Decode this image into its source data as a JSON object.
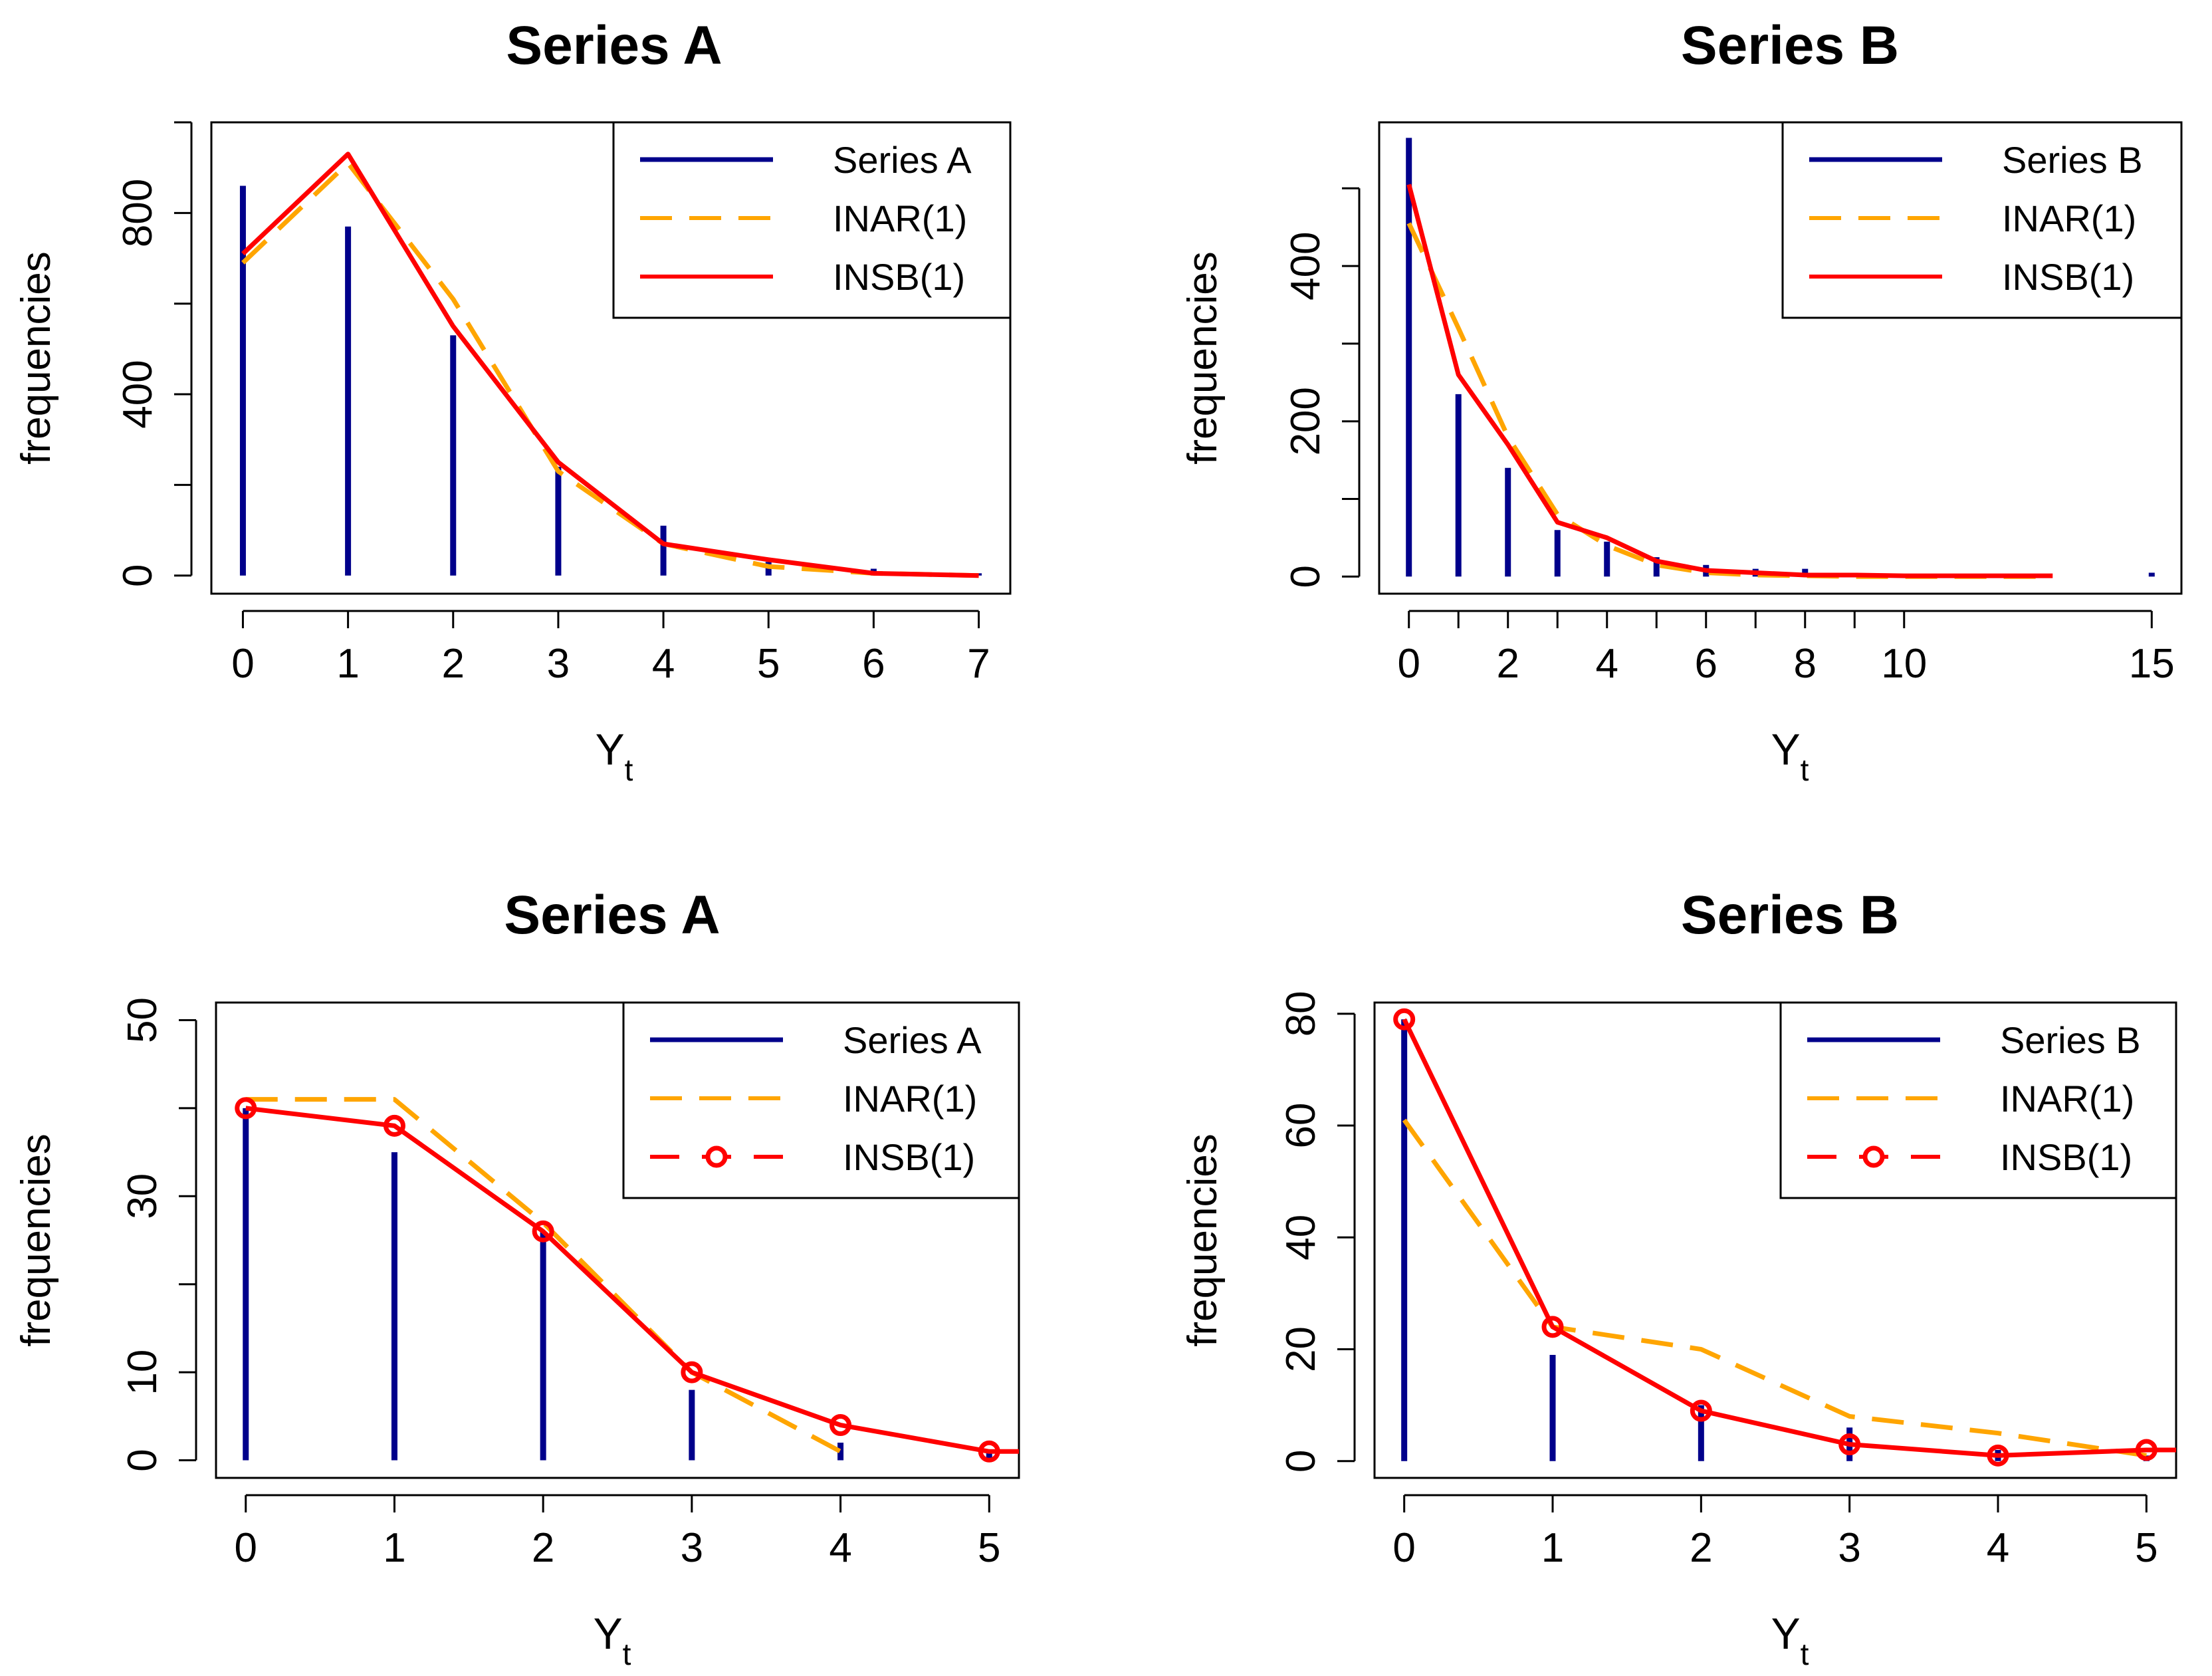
{
  "colors": {
    "observed": "#00008B",
    "inar": "#FFA500",
    "insb": "#FF0000",
    "axis": "#000000",
    "background": "#FFFFFF"
  },
  "chart_data": [
    {
      "type": "bar",
      "title": "Series A",
      "xlabel": "Y",
      "xlabel_subscript": "t",
      "ylabel": "frequencies",
      "xlim": [
        -0.3,
        7.3
      ],
      "ylim": [
        -40,
        1000
      ],
      "x_ticks": [
        0,
        1,
        2,
        3,
        4,
        5,
        6,
        7
      ],
      "x_tick_labels": [
        "0",
        "1",
        "2",
        "3",
        "4",
        "5",
        "6",
        "7"
      ],
      "y_ticks": [
        0,
        200,
        400,
        600,
        800,
        1000
      ],
      "y_tick_labels": [
        "0",
        "",
        "400",
        "",
        "800",
        ""
      ],
      "legend": {
        "position": "top-right",
        "markers": false,
        "entries": [
          "Series A",
          "INAR(1)",
          "INSB(1)"
        ]
      },
      "series": [
        {
          "name": "Series A",
          "style": "bars",
          "x": [
            0,
            1,
            2,
            3,
            4,
            5,
            6,
            7
          ],
          "values": [
            860,
            770,
            530,
            240,
            110,
            30,
            15,
            5
          ]
        },
        {
          "name": "INAR(1)",
          "style": "dashed",
          "x": [
            0,
            1,
            2,
            3,
            4,
            5,
            6,
            7
          ],
          "values": [
            690,
            910,
            610,
            230,
            70,
            20,
            5,
            0
          ]
        },
        {
          "name": "INSB(1)",
          "style": "solid",
          "x": [
            0,
            1,
            2,
            3,
            4,
            5,
            6,
            7
          ],
          "values": [
            710,
            930,
            550,
            250,
            70,
            35,
            5,
            0
          ]
        }
      ]
    },
    {
      "type": "bar",
      "title": "Series B",
      "xlabel": "Y",
      "xlabel_subscript": "t",
      "ylabel": "frequencies",
      "xlim": [
        -0.6,
        15.6
      ],
      "ylim": [
        -22,
        585
      ],
      "x_ticks": [
        0,
        1,
        2,
        3,
        4,
        5,
        6,
        7,
        8,
        9,
        10,
        15
      ],
      "x_tick_labels": [
        "0",
        "",
        "2",
        "",
        "4",
        "",
        "6",
        "",
        "8",
        "",
        "10",
        "15"
      ],
      "y_ticks": [
        0,
        100,
        200,
        300,
        400,
        500
      ],
      "y_tick_labels": [
        "0",
        "",
        "200",
        "",
        "400",
        ""
      ],
      "legend": {
        "position": "top-right",
        "markers": false,
        "entries": [
          "Series B",
          "INAR(1)",
          "INSB(1)"
        ]
      },
      "series": [
        {
          "name": "Series B",
          "style": "bars",
          "x": [
            0,
            1,
            2,
            3,
            4,
            5,
            6,
            7,
            8,
            9,
            10,
            15
          ],
          "values": [
            565,
            235,
            140,
            60,
            45,
            25,
            15,
            10,
            10,
            3,
            2,
            5
          ]
        },
        {
          "name": "INAR(1)",
          "style": "dashed",
          "x": [
            0,
            1,
            2,
            3,
            4,
            5,
            6,
            7,
            8,
            9,
            10,
            11,
            12,
            13
          ],
          "values": [
            455,
            320,
            180,
            80,
            40,
            15,
            5,
            2,
            1,
            0,
            0,
            0,
            0,
            0
          ]
        },
        {
          "name": "INSB(1)",
          "style": "solid",
          "x": [
            0,
            1,
            2,
            3,
            4,
            5,
            6,
            7,
            8,
            9,
            10,
            11,
            12,
            13
          ],
          "values": [
            505,
            260,
            170,
            70,
            50,
            20,
            8,
            5,
            2,
            2,
            1,
            1,
            1,
            1
          ]
        }
      ]
    },
    {
      "type": "bar",
      "title": "Series A",
      "xlabel": "Y",
      "xlabel_subscript": "t",
      "ylabel": "frequencies",
      "xlim": [
        -0.2,
        5.2
      ],
      "ylim": [
        -2,
        52
      ],
      "x_ticks": [
        0,
        1,
        2,
        3,
        4,
        5
      ],
      "x_tick_labels": [
        "0",
        "1",
        "2",
        "3",
        "4",
        "5"
      ],
      "y_ticks": [
        0,
        10,
        20,
        30,
        40,
        50
      ],
      "y_tick_labels": [
        "0",
        "10",
        "",
        "30",
        "",
        "50"
      ],
      "legend": {
        "position": "top-right",
        "markers": true,
        "entries": [
          "Series A",
          "INAR(1)",
          "INSB(1)"
        ]
      },
      "series": [
        {
          "name": "Series A",
          "style": "bars",
          "x": [
            0,
            1,
            2,
            3,
            4,
            5
          ],
          "values": [
            40,
            35,
            26,
            8,
            2,
            1
          ]
        },
        {
          "name": "INAR(1)",
          "style": "dashed",
          "x": [
            0,
            1,
            2,
            3,
            4
          ],
          "values": [
            41,
            41,
            27,
            10,
            1
          ]
        },
        {
          "name": "INSB(1)",
          "style": "solid-markers",
          "x": [
            0,
            1,
            2,
            3,
            4,
            5,
            5.2
          ],
          "values": [
            40,
            38,
            26,
            10,
            4,
            1,
            1
          ]
        }
      ]
    },
    {
      "type": "bar",
      "title": "Series B",
      "xlabel": "Y",
      "xlabel_subscript": "t",
      "ylabel": "frequencies",
      "xlim": [
        -0.2,
        5.2
      ],
      "ylim": [
        -3,
        82
      ],
      "x_ticks": [
        0,
        1,
        2,
        3,
        4,
        5
      ],
      "x_tick_labels": [
        "0",
        "1",
        "2",
        "3",
        "4",
        "5"
      ],
      "y_ticks": [
        0,
        20,
        40,
        60,
        80
      ],
      "y_tick_labels": [
        "0",
        "20",
        "40",
        "60",
        "80"
      ],
      "legend": {
        "position": "top-right",
        "markers": true,
        "entries": [
          "Series B",
          "INAR(1)",
          "INSB(1)"
        ]
      },
      "series": [
        {
          "name": "Series B",
          "style": "bars",
          "x": [
            0,
            1,
            2,
            3,
            4,
            5
          ],
          "values": [
            79,
            19,
            10,
            6,
            2,
            1
          ]
        },
        {
          "name": "INAR(1)",
          "style": "dashed",
          "x": [
            0,
            1,
            2,
            3,
            4,
            5
          ],
          "values": [
            61,
            24,
            20,
            8,
            5,
            1
          ]
        },
        {
          "name": "INSB(1)",
          "style": "solid-markers",
          "x": [
            0,
            1,
            2,
            3,
            4,
            5,
            5.2
          ],
          "values": [
            79,
            24,
            9,
            3,
            1,
            2,
            2
          ]
        }
      ]
    }
  ]
}
